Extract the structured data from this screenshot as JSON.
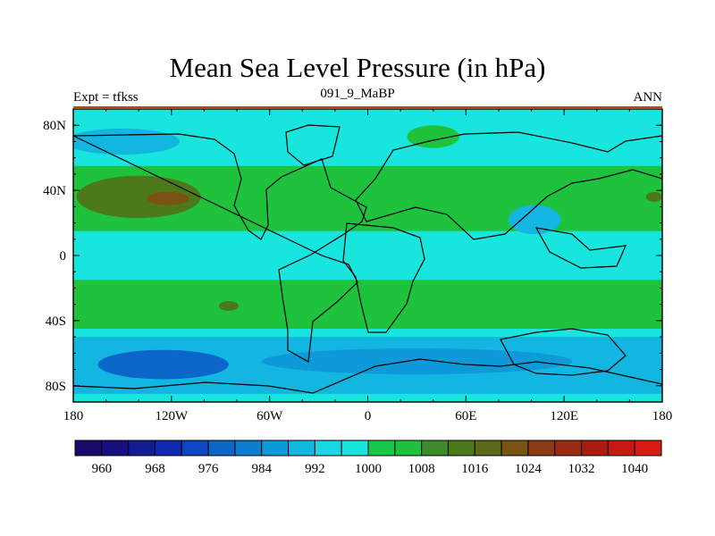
{
  "chart_data": {
    "type": "heatmap",
    "title": "Mean Sea Level Pressure (in hPa)",
    "subtitle_left": "Expt = tfkss",
    "subtitle_center": "091_9_MaBP",
    "subtitle_right": "ANN",
    "x_ticks": [
      {
        "value": -180,
        "label": "180"
      },
      {
        "value": -120,
        "label": "120W"
      },
      {
        "value": -60,
        "label": "60W"
      },
      {
        "value": 0,
        "label": "0"
      },
      {
        "value": 60,
        "label": "60E"
      },
      {
        "value": 120,
        "label": "120E"
      },
      {
        "value": 180,
        "label": "180"
      }
    ],
    "y_ticks": [
      {
        "value": 80,
        "label": "80N"
      },
      {
        "value": 40,
        "label": "40N"
      },
      {
        "value": 0,
        "label": "0"
      },
      {
        "value": -40,
        "label": "40S"
      },
      {
        "value": -80,
        "label": "80S"
      }
    ],
    "xlim": [
      -180,
      180
    ],
    "ylim": [
      -90,
      90
    ],
    "colorbar": {
      "levels": [
        960,
        964,
        968,
        972,
        976,
        980,
        984,
        988,
        992,
        996,
        1000,
        1004,
        1008,
        1012,
        1016,
        1020,
        1024,
        1028,
        1032,
        1036,
        1040
      ],
      "label_values": [
        960,
        968,
        976,
        984,
        992,
        1000,
        1008,
        1016,
        1024,
        1032,
        1040
      ],
      "labels": [
        "960",
        "968",
        "976",
        "984",
        "992",
        "1000",
        "1008",
        "1016",
        "1024",
        "1032",
        "1040"
      ],
      "colors": [
        "#180a6c",
        "#15107f",
        "#121a94",
        "#0f2ab0",
        "#0c46c0",
        "#0a66c8",
        "#0a7ed2",
        "#0e9ad8",
        "#12b6e0",
        "#1ad6e4",
        "#18e6de",
        "#16c84a",
        "#1fc23c",
        "#3c8c2e",
        "#4c7a1a",
        "#5b6a18",
        "#7a5214",
        "#8c3a12",
        "#9a2a10",
        "#aa1c10",
        "#c41a12",
        "#d81a12"
      ]
    },
    "bands": [
      {
        "lat_top": 90,
        "lat_bottom": -90,
        "lon_min": -180,
        "lon_max": 180,
        "value": 1002,
        "color": "#18e6de"
      },
      {
        "lat_top": 55,
        "lat_bottom": 15,
        "lon_min": -180,
        "lon_max": 180,
        "value": 1014,
        "color": "#1fc23c"
      },
      {
        "lat_top": -15,
        "lat_bottom": -45,
        "lon_min": -180,
        "lon_max": 180,
        "value": 1012,
        "color": "#1fc23c"
      },
      {
        "lat_top": -50,
        "lat_bottom": -85,
        "lon_min": -180,
        "lon_max": 180,
        "value": 990,
        "color": "#12b6e0"
      }
    ],
    "cells": [
      {
        "lon": -140,
        "lat": 36,
        "rx": 38,
        "ry": 13,
        "value": 1018,
        "color": "#4c7a1a"
      },
      {
        "lon": -122,
        "lat": 35,
        "rx": 13,
        "ry": 4,
        "value": 1022,
        "color": "#7a5214"
      },
      {
        "lon": -150,
        "lat": 70,
        "rx": 35,
        "ry": 8,
        "value": 994,
        "color": "#12b6e0"
      },
      {
        "lon": 40,
        "lat": 73,
        "rx": 16,
        "ry": 7,
        "value": 1010,
        "color": "#1fc23c"
      },
      {
        "lon": 102,
        "lat": 22,
        "rx": 16,
        "ry": 9,
        "value": 994,
        "color": "#12b6e0"
      },
      {
        "lon": 175,
        "lat": 36,
        "rx": 5,
        "ry": 3,
        "value": 1016,
        "color": "#4c7a1a"
      },
      {
        "lon": -85,
        "lat": -31,
        "rx": 6,
        "ry": 3,
        "value": 1018,
        "color": "#4c7a1a"
      },
      {
        "lon": -125,
        "lat": -67,
        "rx": 40,
        "ry": 9,
        "value": 978,
        "color": "#0a66c8"
      },
      {
        "lon": 30,
        "lat": -65,
        "rx": 95,
        "ry": 8,
        "value": 990,
        "color": "#0e9ad8"
      }
    ]
  }
}
